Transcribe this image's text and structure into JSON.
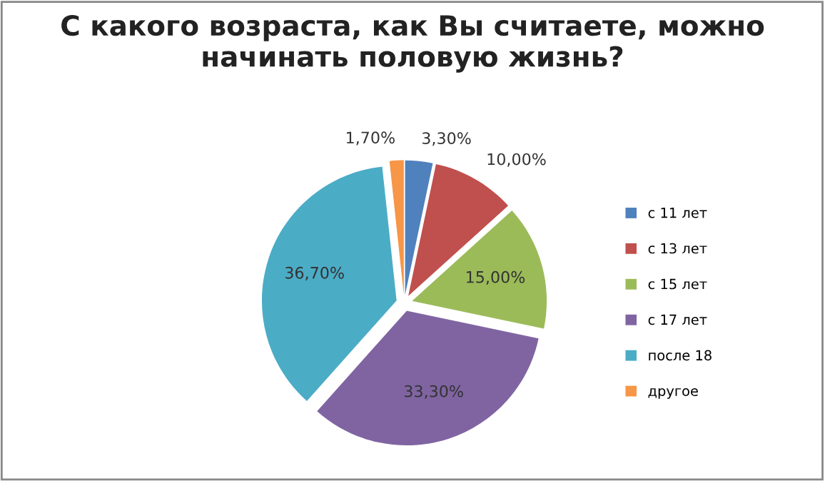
{
  "chart_data": {
    "type": "pie",
    "title": "С какого возраста, как Вы считаете, можно\nначинать половую жизнь?",
    "categories": [
      "с 11 лет",
      "с 13 лет",
      "с 15 лет",
      "с 17 лет",
      "после 18",
      "другое"
    ],
    "values": [
      3.3,
      10.0,
      15.0,
      33.3,
      36.7,
      1.7
    ],
    "value_labels": [
      "3,30%",
      "10,00%",
      "15,00%",
      "33,30%",
      "36,70%",
      "1,70%"
    ],
    "colors": [
      "#4f81bd",
      "#c0504d",
      "#9bbb59",
      "#8064a2",
      "#4bacc6",
      "#f79646"
    ],
    "legend": "right"
  }
}
